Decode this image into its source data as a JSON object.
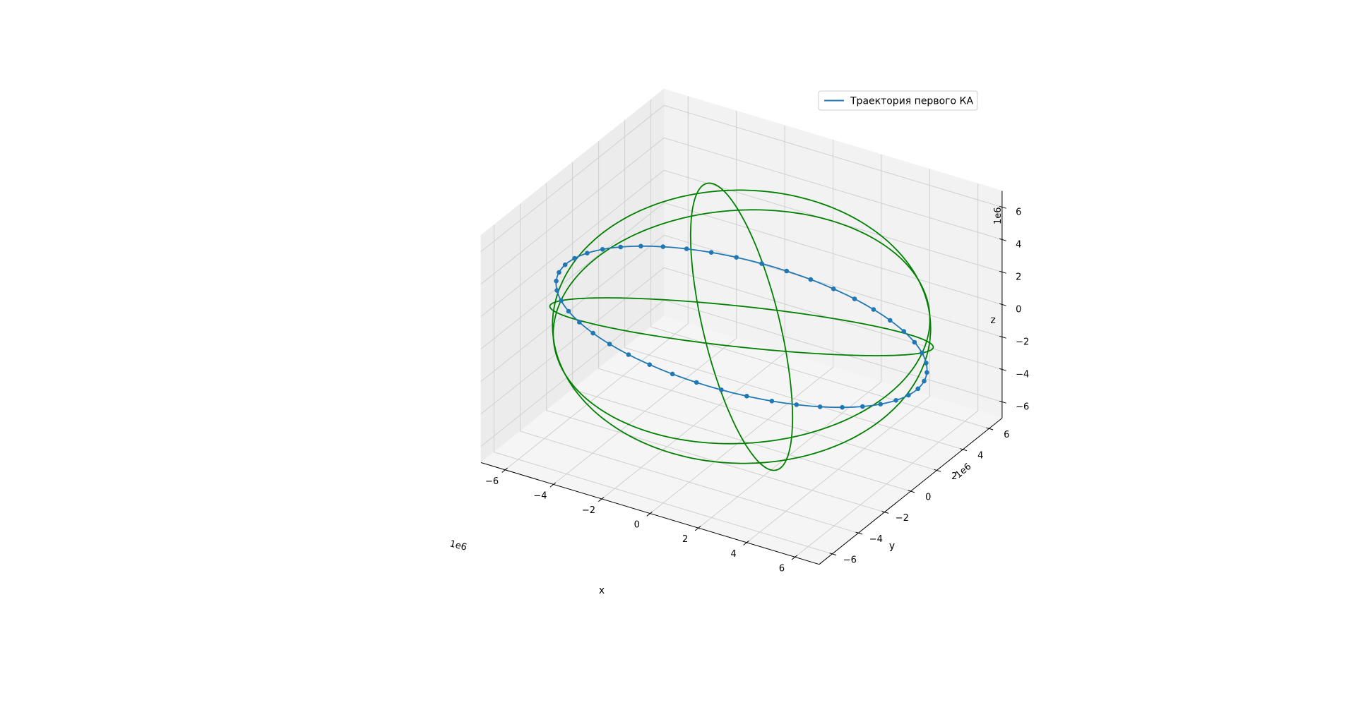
{
  "chart_data": {
    "type": "line",
    "projection": "3d",
    "axes": {
      "x": {
        "label": "x",
        "ticks": [
          -6,
          -4,
          -2,
          0,
          2,
          4,
          6
        ],
        "tick_labels": [
          "−6",
          "−4",
          "−2",
          "0",
          "2",
          "4",
          "6"
        ],
        "offset_text": "1e6",
        "lim": [
          -7,
          7
        ]
      },
      "y": {
        "label": "y",
        "ticks": [
          -6,
          -4,
          -2,
          0,
          2,
          4,
          6
        ],
        "tick_labels": [
          "−6",
          "−4",
          "−2",
          "0",
          "2",
          "4",
          "6"
        ],
        "offset_text": "1e6",
        "lim": [
          -7,
          7
        ]
      },
      "z": {
        "label": "z",
        "ticks": [
          -6,
          -4,
          -2,
          0,
          2,
          4,
          6
        ],
        "tick_labels": [
          "−6",
          "−4",
          "−2",
          "0",
          "2",
          "4",
          "6"
        ],
        "offset_text": "1e6",
        "lim": [
          -7,
          7
        ]
      }
    },
    "grid": true,
    "legend": {
      "position": "top-right",
      "entries": [
        {
          "label": "Траектория первого КА",
          "color": "#1f77b4"
        }
      ]
    },
    "series": [
      {
        "name": "Траектория первого КА",
        "color": "#1f77b4",
        "kind": "circular-orbit",
        "radius": 7.0,
        "inclination_deg": 18,
        "raan_deg": 150,
        "markers": true,
        "marker_count": 46
      },
      {
        "color": "#008000",
        "kind": "circular-orbit",
        "radius": 7.0,
        "inclination_deg": 35,
        "raan_deg": 10
      },
      {
        "color": "#008000",
        "kind": "circular-orbit",
        "radius": 7.0,
        "inclination_deg": 88,
        "raan_deg": 40
      },
      {
        "color": "#008000",
        "kind": "circular-orbit",
        "radius": 7.0,
        "inclination_deg": 75,
        "raan_deg": 115
      },
      {
        "color": "#008000",
        "kind": "circular-orbit",
        "radius": 7.0,
        "inclination_deg": 30,
        "raan_deg": 200
      }
    ]
  }
}
